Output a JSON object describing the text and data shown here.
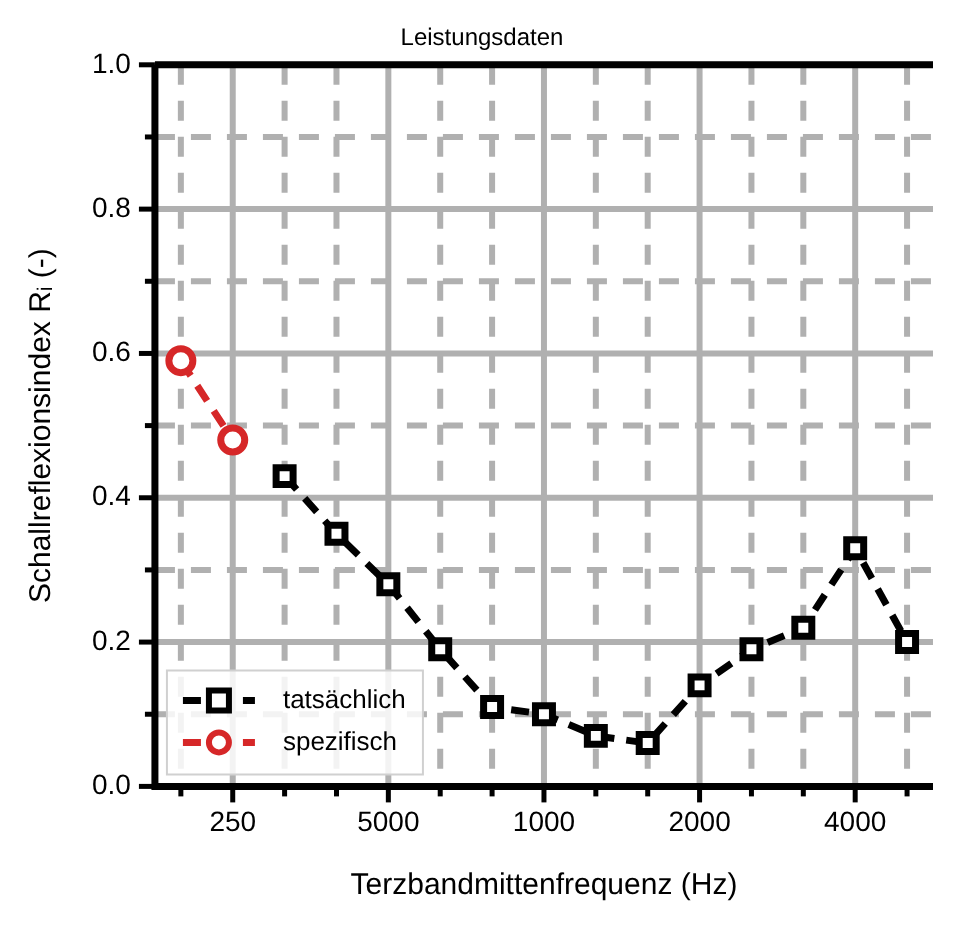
{
  "chart_data": {
    "type": "line",
    "title": "Leistungsdaten",
    "xlabel": "Terzbandmittenfrequenz (Hz)",
    "ylabel": "Schallreflexionsindex Rᵢ (-)",
    "categories": [
      null,
      "250",
      null,
      null,
      "5000",
      null,
      null,
      "1000",
      null,
      null,
      "2000",
      null,
      null,
      "4000",
      null
    ],
    "series": [
      {
        "name": "tatsächlich",
        "color": "#000000",
        "marker": "square",
        "values": [
          null,
          null,
          0.43,
          0.35,
          0.28,
          0.19,
          0.11,
          0.1,
          0.07,
          0.06,
          0.14,
          0.19,
          0.22,
          0.33,
          0.2
        ]
      },
      {
        "name": "spezifisch",
        "color": "#d62728",
        "marker": "circle",
        "values": [
          0.59,
          0.48,
          null,
          null,
          null,
          null,
          null,
          null,
          null,
          null,
          null,
          null,
          null,
          null,
          null
        ]
      }
    ],
    "ylim": [
      0,
      1
    ],
    "yticks": [
      {
        "value": 0,
        "label": "0.0"
      },
      {
        "value": 0.1,
        "label": null
      },
      {
        "value": 0.2,
        "label": "0.2"
      },
      {
        "value": 0.3,
        "label": null
      },
      {
        "value": 0.4,
        "label": "0.4"
      },
      {
        "value": 0.5,
        "label": null
      },
      {
        "value": 0.6,
        "label": "0.6"
      },
      {
        "value": 0.7,
        "label": null
      },
      {
        "value": 0.8,
        "label": "0.8"
      },
      {
        "value": 0.9,
        "label": null
      },
      {
        "value": 1,
        "label": "1.0"
      }
    ],
    "grid": true,
    "legend": "bottom left",
    "line_style": "dashed"
  }
}
